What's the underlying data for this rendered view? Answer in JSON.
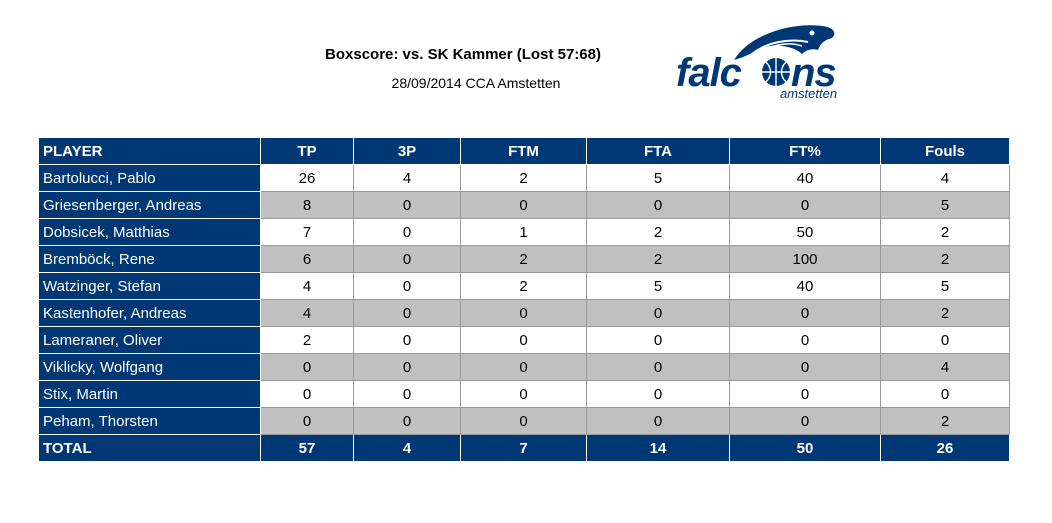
{
  "header": {
    "title": "Boxscore: vs. SK Kammer (Lost 57:68)",
    "subtitle": "28/09/2014 CCA Amstetten"
  },
  "logo": {
    "icon": "falcon-basketball-logo",
    "word": "falcons",
    "sub": "amstetten",
    "color": "#003876"
  },
  "table": {
    "columns": [
      "PLAYER",
      "TP",
      "3P",
      "FTM",
      "FTA",
      "FT%",
      "Fouls"
    ],
    "rows": [
      {
        "player": "Bartolucci, Pablo",
        "tp": "26",
        "p3": "4",
        "ftm": "2",
        "fta": "5",
        "ftp": "40",
        "fouls": "4"
      },
      {
        "player": "Griesenberger, Andreas",
        "tp": "8",
        "p3": "0",
        "ftm": "0",
        "fta": "0",
        "ftp": "0",
        "fouls": "5"
      },
      {
        "player": "Dobsicek, Matthias",
        "tp": "7",
        "p3": "0",
        "ftm": "1",
        "fta": "2",
        "ftp": "50",
        "fouls": "2"
      },
      {
        "player": "Bremböck, Rene",
        "tp": "6",
        "p3": "0",
        "ftm": "2",
        "fta": "2",
        "ftp": "100",
        "fouls": "2"
      },
      {
        "player": "Watzinger, Stefan",
        "tp": "4",
        "p3": "0",
        "ftm": "2",
        "fta": "5",
        "ftp": "40",
        "fouls": "5"
      },
      {
        "player": "Kastenhofer, Andreas",
        "tp": "4",
        "p3": "0",
        "ftm": "0",
        "fta": "0",
        "ftp": "0",
        "fouls": "2"
      },
      {
        "player": "Lameraner, Oliver",
        "tp": "2",
        "p3": "0",
        "ftm": "0",
        "fta": "0",
        "ftp": "0",
        "fouls": "0"
      },
      {
        "player": "Viklicky, Wolfgang",
        "tp": "0",
        "p3": "0",
        "ftm": "0",
        "fta": "0",
        "ftp": "0",
        "fouls": "4"
      },
      {
        "player": "Stix, Martin",
        "tp": "0",
        "p3": "0",
        "ftm": "0",
        "fta": "0",
        "ftp": "0",
        "fouls": "0"
      },
      {
        "player": "Peham, Thorsten",
        "tp": "0",
        "p3": "0",
        "ftm": "0",
        "fta": "0",
        "ftp": "0",
        "fouls": "2"
      }
    ],
    "total": {
      "label": "TOTAL",
      "tp": "57",
      "p3": "4",
      "ftm": "7",
      "fta": "14",
      "ftp": "50",
      "fouls": "26"
    }
  },
  "colors": {
    "header_bg": "#003876",
    "row_alt": "#c0c0c0"
  }
}
